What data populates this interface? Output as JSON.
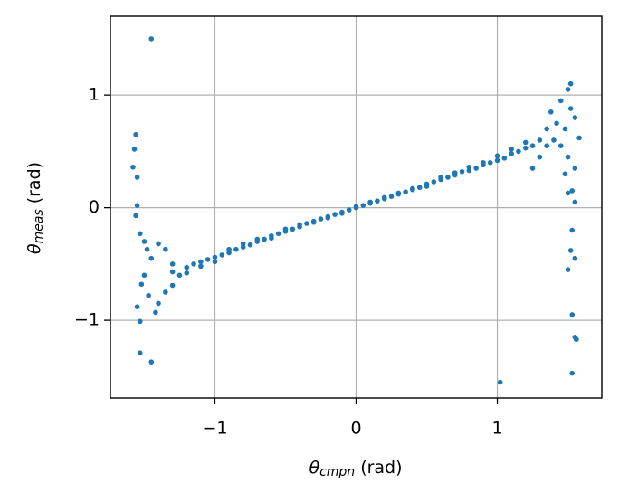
{
  "chart_data": {
    "type": "scatter",
    "xlabel": {
      "symbol": "θ",
      "sub": "cmpn",
      "unit": "(rad)"
    },
    "ylabel": {
      "symbol": "θ",
      "sub": "meas",
      "unit": "(rad)"
    },
    "color": "#1f77b4",
    "grid": true,
    "xlim": [
      -1.74,
      1.74
    ],
    "ylim": [
      -1.69,
      1.7
    ],
    "xticks": [
      {
        "value": -1,
        "label": "−1"
      },
      0,
      1
    ],
    "yticks": [
      {
        "value": -1,
        "label": "−1"
      },
      0,
      1
    ],
    "x": [
      -1.45,
      -1.56,
      -1.57,
      -1.58,
      -1.55,
      -1.55,
      -1.56,
      -1.53,
      -1.5,
      -1.48,
      -1.55,
      -1.53,
      -1.53,
      -1.45,
      -1.5,
      -1.52,
      -1.47,
      -1.42,
      -1.4,
      -1.35,
      -1.3,
      -1.45,
      -1.4,
      -1.35,
      1.52,
      1.5,
      1.45,
      1.52,
      1.55,
      1.48,
      1.58,
      1.5,
      1.55,
      1.48,
      1.53,
      1.5,
      1.55,
      1.53,
      1.52,
      1.55,
      1.5,
      1.53,
      1.55,
      1.56,
      1.53,
      1.02,
      1.38,
      1.42,
      1.35,
      1.4,
      1.3,
      1.45,
      1.25,
      1.35,
      -1.3,
      -1.3,
      -1.25,
      -1.2,
      -1.2,
      -1.15,
      -1.1,
      -1.1,
      -1.05,
      -1.0,
      -1.0,
      -0.95,
      -0.9,
      -0.9,
      -0.85,
      -0.8,
      -0.8,
      -0.75,
      -0.7,
      -0.7,
      -0.65,
      -0.6,
      -0.6,
      -0.55,
      -0.5,
      -0.5,
      -0.45,
      -0.4,
      -0.4,
      -0.35,
      -0.3,
      -0.3,
      -0.25,
      -0.2,
      -0.2,
      -0.15,
      -0.1,
      -0.1,
      -0.05,
      0,
      0,
      0.05,
      0.1,
      0.1,
      0.15,
      0.2,
      0.2,
      0.25,
      0.3,
      0.3,
      0.35,
      0.4,
      0.4,
      0.45,
      0.5,
      0.5,
      0.55,
      0.6,
      0.6,
      0.65,
      0.7,
      0.7,
      0.75,
      0.8,
      0.8,
      0.85,
      0.9,
      0.9,
      0.95,
      1.0,
      1.0,
      1.05,
      1.1,
      1.1,
      1.15,
      1.2,
      1.2,
      1.25,
      1.3
    ],
    "values": [
      1.5,
      0.65,
      0.52,
      0.36,
      0.27,
      0.02,
      -0.07,
      -0.23,
      -0.3,
      -0.37,
      -0.88,
      -1.01,
      -1.29,
      -1.37,
      -0.6,
      -0.68,
      -0.78,
      -0.93,
      -0.85,
      -0.75,
      -0.69,
      -0.45,
      -0.32,
      -0.37,
      1.1,
      1.05,
      0.95,
      0.88,
      0.8,
      0.7,
      0.62,
      0.45,
      0.35,
      0.3,
      0.15,
      0.13,
      0.05,
      -0.2,
      -0.38,
      -0.45,
      -0.55,
      -0.95,
      -1.15,
      -1.17,
      -1.47,
      -1.55,
      0.85,
      0.75,
      0.7,
      0.6,
      0.45,
      0.55,
      0.35,
      0.55,
      -0.57,
      -0.5,
      -0.6,
      -0.53,
      -0.58,
      -0.5,
      -0.48,
      -0.52,
      -0.46,
      -0.44,
      -0.48,
      -0.42,
      -0.4,
      -0.37,
      -0.37,
      -0.35,
      -0.32,
      -0.33,
      -0.3,
      -0.28,
      -0.28,
      -0.25,
      -0.27,
      -0.23,
      -0.21,
      -0.19,
      -0.19,
      -0.17,
      -0.15,
      -0.14,
      -0.12,
      -0.13,
      -0.1,
      -0.08,
      -0.09,
      -0.06,
      -0.04,
      -0.05,
      -0.02,
      0,
      0.01,
      0.02,
      0.04,
      0.05,
      0.06,
      0.08,
      0.09,
      0.1,
      0.12,
      0.13,
      0.14,
      0.16,
      0.17,
      0.18,
      0.21,
      0.19,
      0.23,
      0.25,
      0.27,
      0.27,
      0.29,
      0.31,
      0.32,
      0.33,
      0.36,
      0.35,
      0.38,
      0.4,
      0.4,
      0.42,
      0.46,
      0.44,
      0.48,
      0.52,
      0.5,
      0.53,
      0.58,
      0.55,
      0.6
    ]
  }
}
